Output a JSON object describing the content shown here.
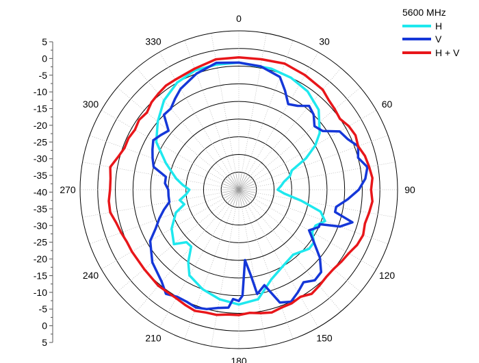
{
  "chart_data": {
    "type": "polar-line",
    "title": "5600 MHz",
    "radial_axis": {
      "tick_labels": [
        "5",
        "0",
        "-5",
        "-10",
        "-15",
        "-20",
        "-25",
        "-30",
        "-35",
        "-40",
        "-35",
        "-30",
        "-25",
        "-20",
        "-15",
        "-10",
        "-5",
        "0",
        "5"
      ],
      "range": [
        -40,
        5
      ],
      "rings": [
        -35,
        -30,
        -25,
        -20,
        -15,
        -10,
        -5,
        0,
        5
      ]
    },
    "angular_axis": {
      "tick_labels": [
        "0",
        "30",
        "60",
        "90",
        "120",
        "150",
        "180",
        "210",
        "240",
        "270",
        "300",
        "330"
      ],
      "tick_angles": [
        0,
        30,
        60,
        90,
        120,
        150,
        180,
        210,
        240,
        270,
        300,
        330
      ],
      "direction": "clockwise",
      "zero": "top"
    },
    "grid": true,
    "legend_position": "top-right",
    "series": [
      {
        "name": "H",
        "color": "#1ee8ee",
        "angles": [
          0,
          15,
          25,
          35,
          45,
          55,
          60,
          65,
          70,
          75,
          80,
          85,
          90,
          95,
          100,
          105,
          110,
          115,
          120,
          125,
          130,
          140,
          150,
          160,
          170,
          180,
          190,
          200,
          210,
          215,
          220,
          225,
          230,
          240,
          250,
          255,
          260,
          265,
          270,
          275,
          280,
          290,
          300,
          310,
          320,
          330,
          340,
          350,
          360
        ],
        "values": [
          -4,
          -4.5,
          -5,
          -6,
          -8,
          -12,
          -15,
          -19,
          -24,
          -25,
          -27,
          -28,
          -29,
          -27,
          -22,
          -16,
          -14,
          -16,
          -16,
          -14,
          -14,
          -16,
          -15,
          -13,
          -8.5,
          -7.5,
          -8.5,
          -10,
          -12,
          -15,
          -19,
          -19,
          -16,
          -18,
          -21,
          -24,
          -23,
          -25,
          -26,
          -24,
          -22,
          -18,
          -13,
          -10,
          -7,
          -5,
          -4,
          -4,
          -4
        ]
      },
      {
        "name": "V",
        "color": "#1537d8",
        "angles": [
          0,
          10,
          20,
          25,
          30,
          35,
          40,
          45,
          50,
          55,
          60,
          65,
          70,
          75,
          80,
          85,
          90,
          95,
          100,
          103,
          106,
          110,
          113,
          115,
          120,
          125,
          130,
          135,
          140,
          145,
          150,
          155,
          160,
          165,
          170,
          172,
          175,
          178,
          180,
          183,
          185,
          190,
          195,
          200,
          205,
          210,
          215,
          220,
          230,
          240,
          245,
          250,
          255,
          260,
          265,
          270,
          275,
          280,
          285,
          290,
          295,
          300,
          305,
          310,
          315,
          320,
          325,
          330,
          340,
          350,
          360
        ],
        "values": [
          -4,
          -4.5,
          -6,
          -9,
          -12,
          -11,
          -9,
          -10,
          -12,
          -11,
          -7,
          -6,
          -4,
          -5,
          -3,
          -4,
          -6,
          -9,
          -12,
          -12,
          -6.5,
          -9.5,
          -15,
          -15,
          -17,
          -14,
          -10,
          -7,
          -6.5,
          -8,
          -6.5,
          -5,
          -6,
          -12,
          -10,
          -15.5,
          -20,
          -10,
          -8.5,
          -9,
          -6.5,
          -6,
          -5,
          -4.5,
          -5,
          -5,
          -4,
          -6,
          -8,
          -11,
          -14,
          -16,
          -18,
          -20,
          -20,
          -20,
          -19,
          -19,
          -15,
          -14,
          -13,
          -12,
          -13,
          -14,
          -10,
          -10,
          -8.5,
          -7,
          -5,
          -3.5,
          -4
        ]
      },
      {
        "name": "H + V",
        "color": "#e8161a",
        "angles": [
          0,
          10,
          20,
          30,
          40,
          45,
          50,
          55,
          60,
          65,
          70,
          75,
          80,
          85,
          90,
          95,
          100,
          105,
          110,
          115,
          120,
          125,
          130,
          135,
          140,
          145,
          150,
          155,
          160,
          165,
          170,
          175,
          180,
          185,
          190,
          195,
          200,
          205,
          210,
          220,
          230,
          240,
          245,
          250,
          255,
          260,
          265,
          270,
          275,
          280,
          285,
          290,
          295,
          300,
          305,
          310,
          315,
          320,
          325,
          330,
          340,
          350,
          360
        ],
        "values": [
          -2.5,
          -2.5,
          -2,
          -2.5,
          -3,
          -4,
          -4.5,
          -5,
          -4,
          -3.5,
          -4,
          -3,
          -2.5,
          -2,
          -2.5,
          -2,
          -2.5,
          -3,
          -2.5,
          -3,
          -4,
          -4.5,
          -5,
          -5,
          -4.5,
          -4,
          -5,
          -4.5,
          -4.5,
          -4,
          -4.5,
          -5,
          -4.5,
          -4.5,
          -4,
          -4,
          -3.5,
          -4,
          -4.5,
          -4.5,
          -5,
          -5,
          -5,
          -4.5,
          -4,
          -3,
          -3,
          -3.5,
          -3.5,
          -3,
          -4.5,
          -5.5,
          -5.5,
          -6,
          -5.5,
          -6,
          -5,
          -4.5,
          -4,
          -4,
          -3.5,
          -2.5,
          -2.5
        ]
      }
    ]
  }
}
